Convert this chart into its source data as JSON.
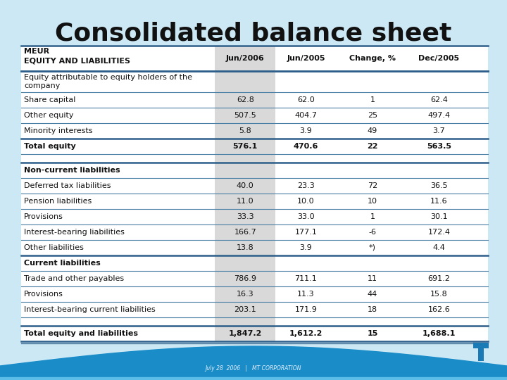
{
  "title": "Consolidated balance sheet",
  "bg_color": "#cce8f4",
  "table_bg": "#ffffff",
  "header_col_bg": "#d9d9d9",
  "col_headers": [
    "Jun/2006",
    "Jun/2005",
    "Change, %",
    "Dec/2005"
  ],
  "row_label_header": "MEUR\nEQUITY AND LIABILITIES",
  "rows": [
    {
      "label": "Equity attributable to equity holders of the\ncompany",
      "values": [
        "",
        "",
        "",
        ""
      ],
      "bold": false,
      "section_header": false,
      "subheader": true,
      "empty_vals": true,
      "top_thick": true
    },
    {
      "label": "Share capital",
      "values": [
        "62.8",
        "62.0",
        "1",
        "62.4"
      ],
      "bold": false,
      "section_header": false,
      "subheader": false,
      "empty_vals": false,
      "top_thick": false
    },
    {
      "label": "Other equity",
      "values": [
        "507.5",
        "404.7",
        "25",
        "497.4"
      ],
      "bold": false,
      "section_header": false,
      "subheader": false,
      "empty_vals": false,
      "top_thick": false
    },
    {
      "label": "Minority interests",
      "values": [
        "5.8",
        "3.9",
        "49",
        "3.7"
      ],
      "bold": false,
      "section_header": false,
      "subheader": false,
      "empty_vals": false,
      "top_thick": false
    },
    {
      "label": "Total equity",
      "values": [
        "576.1",
        "470.6",
        "22",
        "563.5"
      ],
      "bold": true,
      "section_header": false,
      "subheader": false,
      "empty_vals": false,
      "top_thick": true
    },
    {
      "label": "",
      "values": [
        "",
        "",
        "",
        ""
      ],
      "bold": false,
      "section_header": false,
      "subheader": false,
      "empty_vals": true,
      "top_thick": false
    },
    {
      "label": "Non-current liabilities",
      "values": [
        "",
        "",
        "",
        ""
      ],
      "bold": true,
      "section_header": true,
      "subheader": false,
      "empty_vals": true,
      "top_thick": true
    },
    {
      "label": "Deferred tax liabilities",
      "values": [
        "40.0",
        "23.3",
        "72",
        "36.5"
      ],
      "bold": false,
      "section_header": false,
      "subheader": false,
      "empty_vals": false,
      "top_thick": false
    },
    {
      "label": "Pension liabilities",
      "values": [
        "11.0",
        "10.0",
        "10",
        "11.6"
      ],
      "bold": false,
      "section_header": false,
      "subheader": false,
      "empty_vals": false,
      "top_thick": false
    },
    {
      "label": "Provisions",
      "values": [
        "33.3",
        "33.0",
        "1",
        "30.1"
      ],
      "bold": false,
      "section_header": false,
      "subheader": false,
      "empty_vals": false,
      "top_thick": false
    },
    {
      "label": "Interest-bearing liabilities",
      "values": [
        "166.7",
        "177.1",
        "-6",
        "172.4"
      ],
      "bold": false,
      "section_header": false,
      "subheader": false,
      "empty_vals": false,
      "top_thick": false
    },
    {
      "label": "Other liabilities",
      "values": [
        "13.8",
        "3.9",
        "*)",
        "4.4"
      ],
      "bold": false,
      "section_header": false,
      "subheader": false,
      "empty_vals": false,
      "top_thick": false
    },
    {
      "label": "Current liabilities",
      "values": [
        "",
        "",
        "",
        ""
      ],
      "bold": true,
      "section_header": true,
      "subheader": false,
      "empty_vals": true,
      "top_thick": true
    },
    {
      "label": "Trade and other payables",
      "values": [
        "786.9",
        "711.1",
        "11",
        "691.2"
      ],
      "bold": false,
      "section_header": false,
      "subheader": false,
      "empty_vals": false,
      "top_thick": false
    },
    {
      "label": "Provisions",
      "values": [
        "16.3",
        "11.3",
        "44",
        "15.8"
      ],
      "bold": false,
      "section_header": false,
      "subheader": false,
      "empty_vals": false,
      "top_thick": false
    },
    {
      "label": "Interest-bearing current liabilities",
      "values": [
        "203.1",
        "171.9",
        "18",
        "162.6"
      ],
      "bold": false,
      "section_header": false,
      "subheader": false,
      "empty_vals": false,
      "top_thick": false
    },
    {
      "label": "",
      "values": [
        "",
        "",
        "",
        ""
      ],
      "bold": false,
      "section_header": false,
      "subheader": false,
      "empty_vals": true,
      "top_thick": false
    },
    {
      "label": "Total equity and liabilities",
      "values": [
        "1,847.2",
        "1,612.2",
        "15",
        "1,688.1"
      ],
      "bold": true,
      "section_header": false,
      "subheader": false,
      "empty_vals": false,
      "top_thick": true
    }
  ],
  "footer": "July 28  2006   |   MT CORPORATION",
  "title_color": "#111111",
  "text_color": "#111111",
  "line_color": "#2d5f8a",
  "line_color_thin": "#4a7fa5",
  "logo_color": "#1a7ab5",
  "wave_color": "#1a8cc8"
}
